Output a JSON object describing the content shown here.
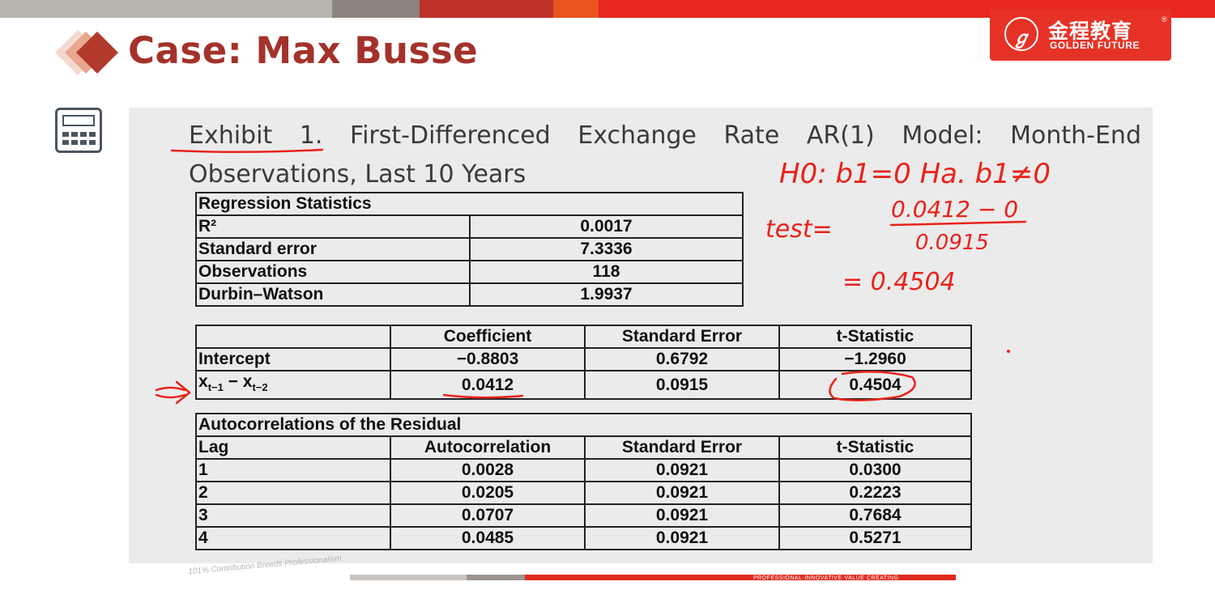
{
  "slide": {
    "title": "Case: Max Busse",
    "heading": "Exhibit 1.  First-Differenced Exchange Rate AR(1) Model: Month-End Observations, Last 10 Years",
    "decor_icon": "calculator-icon"
  },
  "logo": {
    "icon": "golden-future-logo-icon",
    "cn": "金程教育",
    "en": "GOLDEN FUTURE",
    "reg": "®"
  },
  "regression_stats": {
    "header": "Regression Statistics",
    "rows": [
      {
        "label": "R²",
        "value": "0.0017"
      },
      {
        "label": "Standard error",
        "value": "7.3336"
      },
      {
        "label": "Observations",
        "value": "118"
      },
      {
        "label": "Durbin–Watson",
        "value": "1.9937"
      }
    ]
  },
  "coefficients": {
    "headers": [
      "",
      "Coefficient",
      "Standard Error",
      "t-Statistic"
    ],
    "rows": [
      {
        "label": "Intercept",
        "coef": "−0.8803",
        "se": "0.6792",
        "t": "−1.2960"
      },
      {
        "label_main": "x",
        "sub1": "t−1",
        "minus": " − x",
        "sub2": "t−2",
        "coef": "0.0412",
        "se": "0.0915",
        "t": "0.4504"
      }
    ]
  },
  "autocorrelations": {
    "header": "Autocorrelations of the Residual",
    "columns": [
      "Lag",
      "Autocorrelation",
      "Standard Error",
      "t-Statistic"
    ],
    "rows": [
      {
        "lag": "1",
        "ac": "0.0028",
        "se": "0.0921",
        "t": "0.0300"
      },
      {
        "lag": "2",
        "ac": "0.0205",
        "se": "0.0921",
        "t": "0.2223"
      },
      {
        "lag": "3",
        "ac": "0.0707",
        "se": "0.0921",
        "t": "0.7684"
      },
      {
        "lag": "4",
        "ac": "0.0485",
        "se": "0.0921",
        "t": "0.5271"
      }
    ]
  },
  "handwriting": {
    "hypothesis": "H0: b1=0   Ha. b1≠0",
    "test_label": "test=",
    "numerator": "0.0412 − 0",
    "denominator": "0.0915",
    "result": "= 0.4504",
    "ink_color": "#e8231b"
  },
  "footer": {
    "watermark": "101% Contribution Breeds Professionalism",
    "tagline": "PROFESSIONAL·INNOVATIVE·VALUE CREATING"
  }
}
